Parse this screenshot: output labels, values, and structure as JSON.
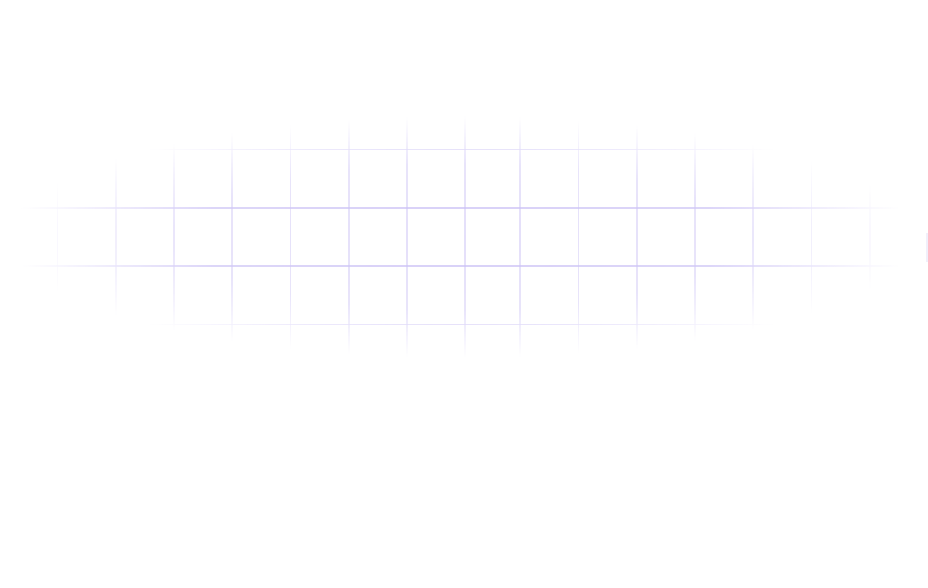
{
  "background": {
    "color": "#ffffff",
    "grid_line_color": "#c9bff5",
    "pattern": "fading-grid"
  }
}
